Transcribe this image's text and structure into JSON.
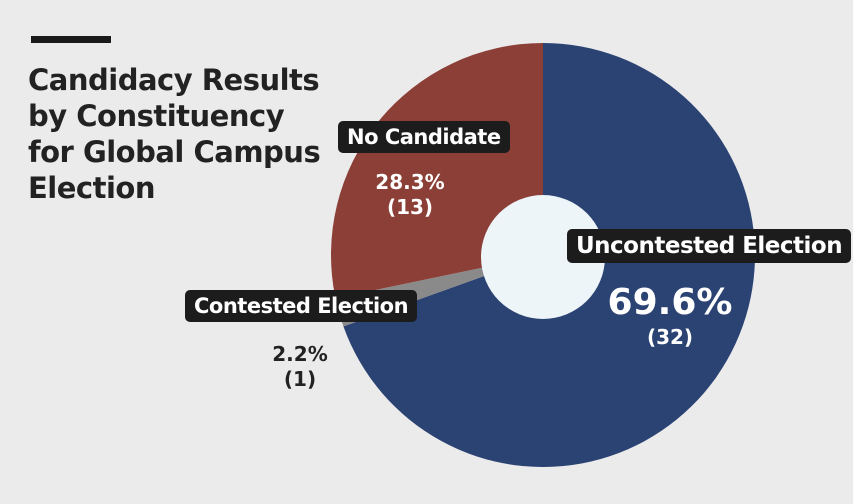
{
  "chart_data": {
    "type": "pie",
    "title": "Candidacy Results by Constituency for Global Campus Election",
    "categories": [
      "Uncontested Election",
      "Contested Election",
      "No Candidate"
    ],
    "values": [
      69.6,
      2.2,
      28.3
    ],
    "counts": [
      32,
      1,
      13
    ],
    "percent_labels": [
      "69.6%",
      "2.2%",
      "28.3%"
    ],
    "count_labels": [
      "(32)",
      "(1)",
      "(13)"
    ],
    "colors": [
      "#2b4373",
      "#8a8a8a",
      "#8b3f36"
    ],
    "donut": true
  }
}
